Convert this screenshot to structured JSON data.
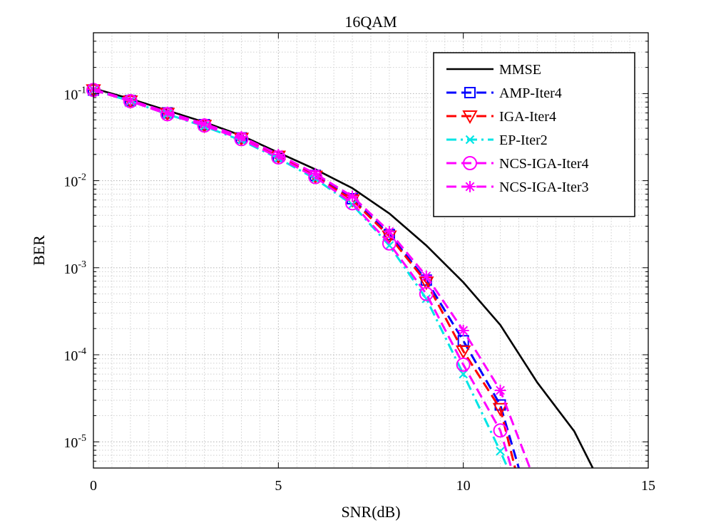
{
  "chart_data": {
    "type": "line",
    "title": "16QAM",
    "xlabel": "SNR(dB)",
    "ylabel": "BER",
    "xlim": [
      0,
      15
    ],
    "ylim": [
      5e-06,
      0.5
    ],
    "yscale": "log",
    "grid": "major and minor, dotted",
    "legend_position": "top-right",
    "x_ticks": [
      0,
      5,
      10,
      15
    ],
    "y_ticks": [
      {
        "value": 1e-05,
        "base": "10",
        "exp": "-5"
      },
      {
        "value": 0.0001,
        "base": "10",
        "exp": "-4"
      },
      {
        "value": 0.001,
        "base": "10",
        "exp": "-3"
      },
      {
        "value": 0.01,
        "base": "10",
        "exp": "-2"
      },
      {
        "value": 0.1,
        "base": "10",
        "exp": "-1"
      }
    ],
    "series": [
      {
        "name": "MMSE",
        "color": "#000000",
        "dash": "solid",
        "marker": "none",
        "x": [
          0,
          1,
          2,
          3,
          4,
          5,
          6,
          7,
          8,
          9,
          10,
          11,
          12,
          13,
          13.5
        ],
        "y": [
          0.115,
          0.087,
          0.064,
          0.047,
          0.033,
          0.021,
          0.0135,
          0.0082,
          0.0042,
          0.0018,
          0.00068,
          0.00022,
          4.8e-05,
          1.32e-05,
          5e-06
        ]
      },
      {
        "name": "AMP-Iter4",
        "color": "#0000ff",
        "dash": "dashed",
        "marker": "square",
        "x": [
          0,
          1,
          2,
          3,
          4,
          5,
          6,
          7,
          8,
          9,
          10,
          11,
          11.5
        ],
        "y": [
          0.11,
          0.083,
          0.06,
          0.044,
          0.031,
          0.019,
          0.0115,
          0.0062,
          0.0024,
          0.00072,
          0.000145,
          2.65e-05,
          5e-06
        ]
      },
      {
        "name": "IGA-Iter4",
        "color": "#ff0000",
        "dash": "dashed",
        "marker": "triangle-down",
        "x": [
          0,
          1,
          2,
          3,
          4,
          5,
          6,
          7,
          8,
          9,
          10,
          11,
          11.4
        ],
        "y": [
          0.11,
          0.082,
          0.059,
          0.043,
          0.0305,
          0.019,
          0.0112,
          0.006,
          0.0023,
          0.00068,
          0.00011,
          2.4e-05,
          5e-06
        ]
      },
      {
        "name": "EP-Iter2",
        "color": "#00e5e5",
        "dash": "dashdot",
        "marker": "x",
        "x": [
          0,
          1,
          2,
          3,
          4,
          5,
          6,
          7,
          8,
          9,
          10,
          11,
          11.2
        ],
        "y": [
          0.11,
          0.082,
          0.058,
          0.042,
          0.029,
          0.018,
          0.0105,
          0.0053,
          0.0018,
          0.00044,
          6e-05,
          7.8e-06,
          5e-06
        ]
      },
      {
        "name": "NCS-IGA-Iter4",
        "color": "#ff00ff",
        "dash": "dashed",
        "marker": "circle",
        "x": [
          0,
          1,
          2,
          3,
          4,
          5,
          6,
          7,
          8,
          9,
          10,
          11,
          11.3
        ],
        "y": [
          0.11,
          0.082,
          0.058,
          0.043,
          0.03,
          0.0185,
          0.011,
          0.0055,
          0.0019,
          0.0005,
          7.7e-05,
          1.35e-05,
          5e-06
        ]
      },
      {
        "name": "NCS-IGA-Iter3",
        "color": "#ff00ff",
        "dash": "dashed",
        "marker": "asterisk",
        "x": [
          0,
          1,
          2,
          3,
          4,
          5,
          6,
          7,
          8,
          9,
          10,
          11,
          11.8
        ],
        "y": [
          0.112,
          0.084,
          0.061,
          0.045,
          0.032,
          0.02,
          0.012,
          0.0066,
          0.0026,
          0.0008,
          0.00019,
          3.9e-05,
          5e-06
        ]
      }
    ]
  }
}
